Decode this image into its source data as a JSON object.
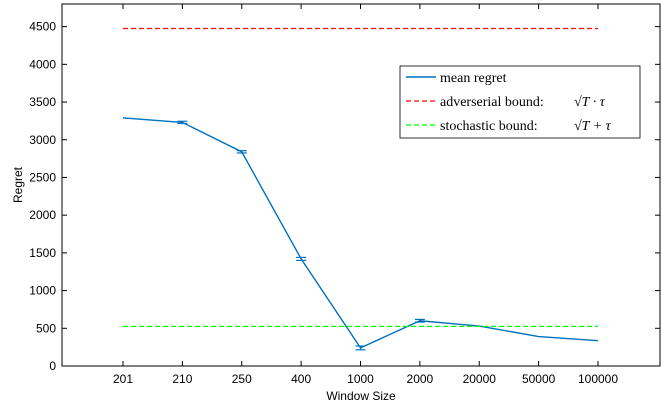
{
  "chart_data": {
    "type": "line",
    "xlabel": "Window Size",
    "ylabel": "Regret",
    "categories": [
      "201",
      "210",
      "250",
      "400",
      "1000",
      "2000",
      "20000",
      "50000",
      "100000"
    ],
    "ylim": [
      0,
      4800
    ],
    "yticks": [
      0,
      500,
      1000,
      1500,
      2000,
      2500,
      3000,
      3500,
      4000,
      4500
    ],
    "grid": false,
    "legend_position": "top-right",
    "series": [
      {
        "name": "mean regret",
        "color": "#0072BD",
        "style": "solid",
        "values": [
          3290,
          3230,
          2840,
          1420,
          240,
          600,
          530,
          390,
          335
        ],
        "error": [
          0,
          15,
          15,
          20,
          25,
          18,
          0,
          0,
          0
        ]
      },
      {
        "name": "adverserial bound:",
        "formula": "√T · τ",
        "color": "#FF0000",
        "style": "dashed",
        "values": [
          4475,
          4475,
          4475,
          4475,
          4475,
          4475,
          4475,
          4475,
          4475
        ]
      },
      {
        "name": "stochastic bound:",
        "formula": "√T + τ",
        "color": "#00FF00",
        "style": "dashed",
        "values": [
          525,
          525,
          525,
          525,
          525,
          525,
          525,
          525,
          525
        ]
      }
    ]
  }
}
